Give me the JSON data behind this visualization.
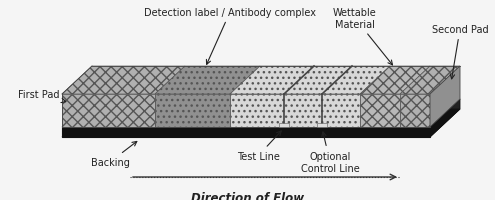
{
  "background_color": "#f5f5f5",
  "labels": {
    "detection_label": "Detection label / Antibody complex",
    "wettable_material": "Wettable\nMaterial",
    "second_pad": "Second Pad",
    "first_pad": "First Pad",
    "backing": "Backing",
    "test_line": "Test Line",
    "optional_control": "Optional\nControl Line",
    "direction_of_flow": "Direction of Flow"
  },
  "figsize": [
    4.95,
    2.01
  ],
  "dpi": 100
}
